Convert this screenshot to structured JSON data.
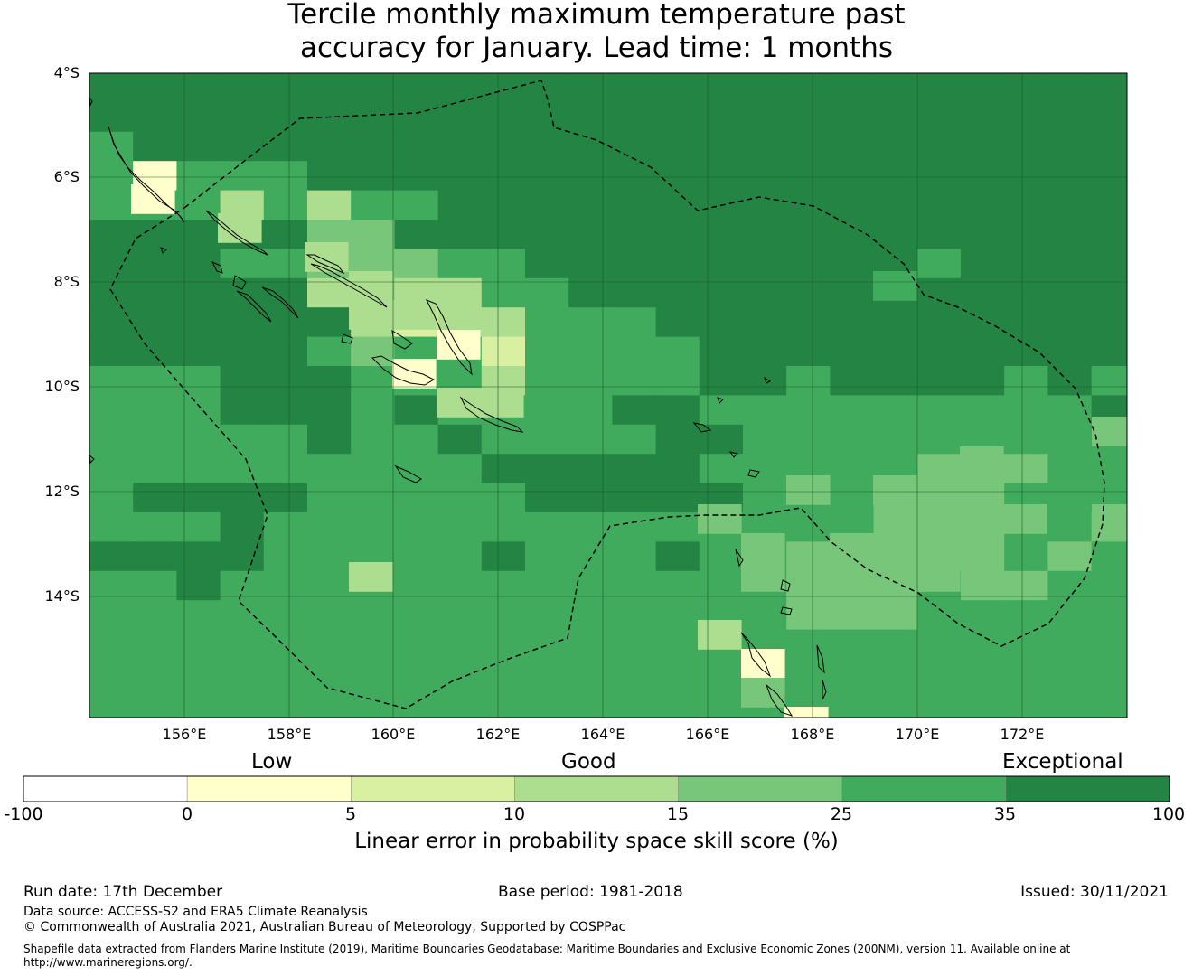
{
  "title": {
    "line1": "Tercile monthly maximum temperature past",
    "line2": "accuracy for January. Lead time: 1 months"
  },
  "map": {
    "lat_labels": [
      "4°S",
      "6°S",
      "8°S",
      "10°S",
      "12°S",
      "14°S"
    ],
    "lon_labels": [
      "156°E",
      "158°E",
      "160°E",
      "162°E",
      "164°E",
      "166°E",
      "168°E",
      "170°E",
      "172°E"
    ],
    "colors": [
      "#ffffff",
      "#ffffcc",
      "#d9f0a3",
      "#addd8e",
      "#78c679",
      "#41ab5d",
      "#238443"
    ]
  },
  "colorbar": {
    "categories": [
      "Low",
      "Good",
      "Exceptional"
    ],
    "ticks": [
      "-100",
      "0",
      "5",
      "10",
      "15",
      "25",
      "35",
      "100"
    ],
    "colors": [
      "#ffffff",
      "#ffffcc",
      "#d9f0a3",
      "#addd8e",
      "#78c679",
      "#41ab5d",
      "#238443"
    ],
    "label": "Linear error in probability space skill score (%)"
  },
  "footer": {
    "run_date": "Run date: 17th December",
    "base_period": "Base period: 1981-2018",
    "issued": "Issued: 30/11/2021",
    "data_source": "Data source: ACCESS-S2 and ERA5 Climate Reanalysis",
    "copyright": "© Commonwealth of Australia 2021, Australian Bureau of Meteorology, Supported by COSPPac",
    "shapefile_line1": "Shapefile data extracted from Flanders Marine Institute (2019), Maritime Boundaries Geodatabase: Maritime Boundaries and Exclusive Economic Zones (200NM), version 11. Available online at",
    "shapefile_line2": "http://www.marineregions.org/."
  }
}
